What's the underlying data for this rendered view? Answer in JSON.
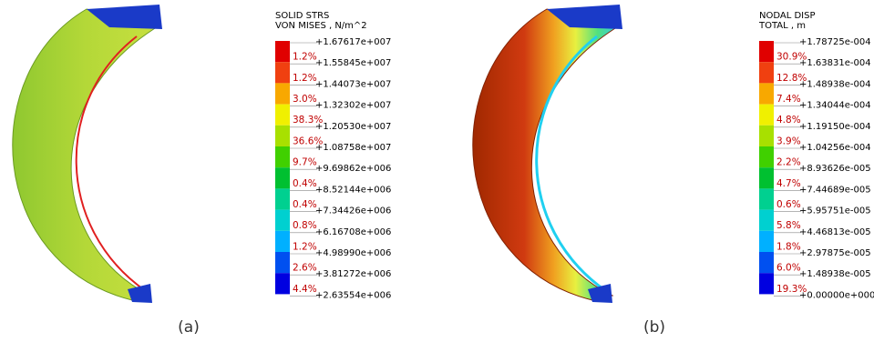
{
  "panels": [
    {
      "title": [
        "SOLID STRS",
        "VON MISES , N/m^2"
      ],
      "levels": [
        "+1.67617e+007",
        "+1.55845e+007",
        "+1.44073e+007",
        "+1.32302e+007",
        "+1.20530e+007",
        "+1.08758e+007",
        "+9.69862e+006",
        "+8.52144e+006",
        "+7.34426e+006",
        "+6.16708e+006",
        "+4.98990e+006",
        "+3.81272e+006",
        "+2.63554e+006"
      ],
      "percents": [
        "1.2%",
        "1.2%",
        "3.0%",
        "38.3%",
        "36.6%",
        "9.7%",
        "0.4%",
        "0.4%",
        "0.8%",
        "1.2%",
        "2.6%",
        "4.4%"
      ],
      "caption": "(a)"
    },
    {
      "title": [
        "NODAL DISP",
        "TOTAL , m"
      ],
      "levels": [
        "+1.78725e-004",
        "+1.63831e-004",
        "+1.48938e-004",
        "+1.34044e-004",
        "+1.19150e-004",
        "+1.04256e-004",
        "+8.93626e-005",
        "+7.44689e-005",
        "+5.95751e-005",
        "+4.46813e-005",
        "+2.97875e-005",
        "+1.48938e-005",
        "+0.00000e+000"
      ],
      "percents": [
        "30.9%",
        "12.8%",
        "7.4%",
        "4.8%",
        "3.9%",
        "2.2%",
        "4.7%",
        "0.6%",
        "5.8%",
        "1.8%",
        "6.0%",
        "19.3%"
      ],
      "caption": "(b)"
    }
  ]
}
